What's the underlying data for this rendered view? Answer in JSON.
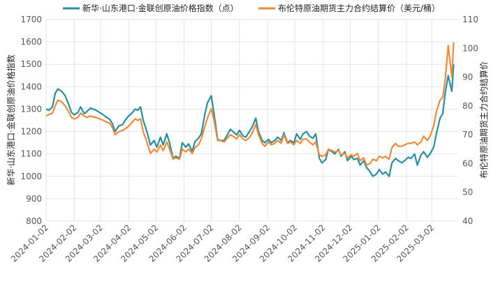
{
  "chart_data": {
    "type": "line",
    "legend_position": "top-center",
    "grid": true,
    "x_ticks": [
      "2024-01-02",
      "2024-02-02",
      "2024-03-02",
      "2024-04-02",
      "2024-05-02",
      "2024-06-02",
      "2024-07-02",
      "2024-08-02",
      "2024-09-02",
      "2024-10-02",
      "2024-11-02",
      "2024-12-02",
      "2025-01-02",
      "2025-02-02",
      "2025-03-02"
    ],
    "y_left": {
      "label": "新华·山东港口·金联创原油价格指数",
      "min": 800,
      "max": 1700,
      "ticks": [
        800,
        900,
        1000,
        1100,
        1200,
        1300,
        1400,
        1500,
        1600,
        1700
      ]
    },
    "y_right": {
      "label": "布伦特原油期货主力合约结算价",
      "min": 40,
      "max": 110,
      "ticks": [
        40,
        50,
        60,
        70,
        80,
        90,
        100,
        110
      ]
    },
    "series": [
      {
        "name": "新华·山东港口·金联创原油价格指数（点）",
        "axis": "left",
        "color": "#2a8c9c",
        "points": [
          [
            "2024-01-02",
            1300
          ],
          [
            "2024-01-05",
            1295
          ],
          [
            "2024-01-09",
            1310
          ],
          [
            "2024-01-12",
            1370
          ],
          [
            "2024-01-15",
            1390
          ],
          [
            "2024-01-19",
            1380
          ],
          [
            "2024-01-23",
            1360
          ],
          [
            "2024-01-26",
            1330
          ],
          [
            "2024-01-30",
            1285
          ],
          [
            "2024-02-02",
            1275
          ],
          [
            "2024-02-06",
            1285
          ],
          [
            "2024-02-09",
            1310
          ],
          [
            "2024-02-13",
            1280
          ],
          [
            "2024-02-16",
            1290
          ],
          [
            "2024-02-20",
            1305
          ],
          [
            "2024-02-26",
            1295
          ],
          [
            "2024-03-01",
            1285
          ],
          [
            "2024-03-05",
            1275
          ],
          [
            "2024-03-08",
            1265
          ],
          [
            "2024-03-12",
            1255
          ],
          [
            "2024-03-15",
            1235
          ],
          [
            "2024-03-18",
            1200
          ],
          [
            "2024-03-22",
            1225
          ],
          [
            "2024-03-26",
            1230
          ],
          [
            "2024-03-29",
            1250
          ],
          [
            "2024-04-02",
            1270
          ],
          [
            "2024-04-05",
            1280
          ],
          [
            "2024-04-09",
            1300
          ],
          [
            "2024-04-12",
            1295
          ],
          [
            "2024-04-15",
            1310
          ],
          [
            "2024-04-18",
            1250
          ],
          [
            "2024-04-22",
            1200
          ],
          [
            "2024-04-26",
            1140
          ],
          [
            "2024-04-30",
            1160
          ],
          [
            "2024-05-03",
            1130
          ],
          [
            "2024-05-07",
            1175
          ],
          [
            "2024-05-10",
            1140
          ],
          [
            "2024-05-14",
            1190
          ],
          [
            "2024-05-17",
            1150
          ],
          [
            "2024-05-21",
            1080
          ],
          [
            "2024-05-24",
            1090
          ],
          [
            "2024-05-28",
            1080
          ],
          [
            "2024-05-31",
            1150
          ],
          [
            "2024-06-04",
            1130
          ],
          [
            "2024-06-07",
            1145
          ],
          [
            "2024-06-11",
            1110
          ],
          [
            "2024-06-14",
            1155
          ],
          [
            "2024-06-18",
            1170
          ],
          [
            "2024-06-21",
            1190
          ],
          [
            "2024-06-25",
            1280
          ],
          [
            "2024-06-28",
            1330
          ],
          [
            "2024-07-02",
            1360
          ],
          [
            "2024-07-05",
            1280
          ],
          [
            "2024-07-09",
            1165
          ],
          [
            "2024-07-12",
            1160
          ],
          [
            "2024-07-16",
            1160
          ],
          [
            "2024-07-19",
            1180
          ],
          [
            "2024-07-23",
            1210
          ],
          [
            "2024-07-26",
            1200
          ],
          [
            "2024-07-30",
            1185
          ],
          [
            "2024-08-02",
            1205
          ],
          [
            "2024-08-06",
            1180
          ],
          [
            "2024-08-09",
            1175
          ],
          [
            "2024-08-13",
            1200
          ],
          [
            "2024-08-16",
            1220
          ],
          [
            "2024-08-20",
            1260
          ],
          [
            "2024-08-23",
            1200
          ],
          [
            "2024-08-27",
            1160
          ],
          [
            "2024-08-30",
            1150
          ],
          [
            "2024-09-03",
            1165
          ],
          [
            "2024-09-06",
            1150
          ],
          [
            "2024-09-10",
            1160
          ],
          [
            "2024-09-13",
            1175
          ],
          [
            "2024-09-17",
            1160
          ],
          [
            "2024-09-20",
            1195
          ],
          [
            "2024-09-24",
            1150
          ],
          [
            "2024-09-27",
            1160
          ],
          [
            "2024-10-01",
            1150
          ],
          [
            "2024-10-04",
            1190
          ],
          [
            "2024-10-08",
            1165
          ],
          [
            "2024-10-11",
            1190
          ],
          [
            "2024-10-15",
            1200
          ],
          [
            "2024-10-18",
            1180
          ],
          [
            "2024-10-22",
            1170
          ],
          [
            "2024-10-25",
            1190
          ],
          [
            "2024-10-29",
            1080
          ],
          [
            "2024-11-01",
            1060
          ],
          [
            "2024-11-05",
            1075
          ],
          [
            "2024-11-08",
            1120
          ],
          [
            "2024-11-12",
            1110
          ],
          [
            "2024-11-15",
            1100
          ],
          [
            "2024-11-19",
            1120
          ],
          [
            "2024-11-22",
            1090
          ],
          [
            "2024-11-26",
            1110
          ],
          [
            "2024-11-29",
            1070
          ],
          [
            "2024-12-03",
            1090
          ],
          [
            "2024-12-06",
            1075
          ],
          [
            "2024-12-10",
            1080
          ],
          [
            "2024-12-13",
            1050
          ],
          [
            "2024-12-17",
            1070
          ],
          [
            "2024-12-20",
            1040
          ],
          [
            "2024-12-24",
            1020
          ],
          [
            "2024-12-27",
            1000
          ],
          [
            "2024-12-31",
            1010
          ],
          [
            "2025-01-03",
            1030
          ],
          [
            "2025-01-07",
            1010
          ],
          [
            "2025-01-10",
            1020
          ],
          [
            "2025-01-14",
            1000
          ],
          [
            "2025-01-17",
            1060
          ],
          [
            "2025-01-21",
            1080
          ],
          [
            "2025-01-24",
            1070
          ],
          [
            "2025-01-28",
            1060
          ],
          [
            "2025-01-31",
            1070
          ],
          [
            "2025-02-04",
            1085
          ],
          [
            "2025-02-07",
            1080
          ],
          [
            "2025-02-11",
            1100
          ],
          [
            "2025-02-14",
            1050
          ],
          [
            "2025-02-18",
            1095
          ],
          [
            "2025-02-21",
            1110
          ],
          [
            "2025-02-25",
            1085
          ],
          [
            "2025-02-28",
            1100
          ],
          [
            "2025-03-04",
            1130
          ],
          [
            "2025-03-07",
            1190
          ],
          [
            "2025-03-11",
            1260
          ],
          [
            "2025-03-14",
            1280
          ],
          [
            "2025-03-17",
            1380
          ],
          [
            "2025-03-20",
            1450
          ],
          [
            "2025-03-24",
            1380
          ],
          [
            "2025-03-26",
            1500
          ]
        ]
      },
      {
        "name": "布伦特原油期货主力合约结算价（美元/桶）",
        "axis": "right",
        "color": "#ee8a3c",
        "points": [
          [
            "2024-01-02",
            76.5
          ],
          [
            "2024-01-05",
            77.0
          ],
          [
            "2024-01-09",
            77.5
          ],
          [
            "2024-01-12",
            80.0
          ],
          [
            "2024-01-15",
            82.0
          ],
          [
            "2024-01-19",
            81.5
          ],
          [
            "2024-01-23",
            80.0
          ],
          [
            "2024-01-26",
            78.5
          ],
          [
            "2024-01-30",
            76.0
          ],
          [
            "2024-02-02",
            75.5
          ],
          [
            "2024-02-06",
            76.0
          ],
          [
            "2024-02-09",
            77.5
          ],
          [
            "2024-02-13",
            76.5
          ],
          [
            "2024-02-16",
            76.0
          ],
          [
            "2024-02-20",
            76.5
          ],
          [
            "2024-02-26",
            76.0
          ],
          [
            "2024-03-01",
            75.5
          ],
          [
            "2024-03-05",
            75.0
          ],
          [
            "2024-03-08",
            74.5
          ],
          [
            "2024-03-12",
            74.0
          ],
          [
            "2024-03-15",
            72.5
          ],
          [
            "2024-03-18",
            70.0
          ],
          [
            "2024-03-22",
            71.0
          ],
          [
            "2024-03-26",
            71.5
          ],
          [
            "2024-03-29",
            72.0
          ],
          [
            "2024-04-02",
            73.0
          ],
          [
            "2024-04-05",
            74.0
          ],
          [
            "2024-04-09",
            75.5
          ],
          [
            "2024-04-12",
            75.0
          ],
          [
            "2024-04-15",
            75.5
          ],
          [
            "2024-04-18",
            71.0
          ],
          [
            "2024-04-22",
            67.5
          ],
          [
            "2024-04-26",
            63.5
          ],
          [
            "2024-04-30",
            65.0
          ],
          [
            "2024-05-03",
            64.0
          ],
          [
            "2024-05-07",
            66.5
          ],
          [
            "2024-05-10",
            64.5
          ],
          [
            "2024-05-14",
            67.5
          ],
          [
            "2024-05-17",
            65.0
          ],
          [
            "2024-05-21",
            61.5
          ],
          [
            "2024-05-24",
            62.0
          ],
          [
            "2024-05-28",
            61.5
          ],
          [
            "2024-05-31",
            65.0
          ],
          [
            "2024-06-04",
            64.0
          ],
          [
            "2024-06-07",
            65.0
          ],
          [
            "2024-06-11",
            63.5
          ],
          [
            "2024-06-14",
            65.5
          ],
          [
            "2024-06-18",
            66.5
          ],
          [
            "2024-06-21",
            68.5
          ],
          [
            "2024-06-25",
            73.0
          ],
          [
            "2024-06-28",
            76.0
          ],
          [
            "2024-07-02",
            79.0
          ],
          [
            "2024-07-05",
            75.0
          ],
          [
            "2024-07-09",
            68.0
          ],
          [
            "2024-07-12",
            68.0
          ],
          [
            "2024-07-16",
            67.5
          ],
          [
            "2024-07-19",
            68.5
          ],
          [
            "2024-07-23",
            70.0
          ],
          [
            "2024-07-26",
            69.5
          ],
          [
            "2024-07-30",
            68.5
          ],
          [
            "2024-08-02",
            70.0
          ],
          [
            "2024-08-06",
            68.5
          ],
          [
            "2024-08-09",
            68.0
          ],
          [
            "2024-08-13",
            69.0
          ],
          [
            "2024-08-16",
            70.5
          ],
          [
            "2024-08-20",
            73.5
          ],
          [
            "2024-08-23",
            70.0
          ],
          [
            "2024-08-27",
            67.0
          ],
          [
            "2024-08-30",
            66.0
          ],
          [
            "2024-09-03",
            67.5
          ],
          [
            "2024-09-06",
            66.5
          ],
          [
            "2024-09-10",
            67.0
          ],
          [
            "2024-09-13",
            68.0
          ],
          [
            "2024-09-17",
            67.0
          ],
          [
            "2024-09-20",
            70.0
          ],
          [
            "2024-09-24",
            67.0
          ],
          [
            "2024-09-27",
            67.5
          ],
          [
            "2024-10-01",
            66.5
          ],
          [
            "2024-10-04",
            68.0
          ],
          [
            "2024-10-08",
            67.0
          ],
          [
            "2024-10-11",
            68.5
          ],
          [
            "2024-10-15",
            68.5
          ],
          [
            "2024-10-18",
            67.5
          ],
          [
            "2024-10-22",
            66.5
          ],
          [
            "2024-10-25",
            67.5
          ],
          [
            "2024-10-29",
            63.0
          ],
          [
            "2024-11-01",
            62.5
          ],
          [
            "2024-11-05",
            63.0
          ],
          [
            "2024-11-08",
            65.0
          ],
          [
            "2024-11-12",
            64.5
          ],
          [
            "2024-11-15",
            64.0
          ],
          [
            "2024-11-19",
            64.5
          ],
          [
            "2024-11-22",
            63.0
          ],
          [
            "2024-11-26",
            63.5
          ],
          [
            "2024-11-29",
            62.0
          ],
          [
            "2024-12-03",
            63.0
          ],
          [
            "2024-12-06",
            62.5
          ],
          [
            "2024-12-10",
            63.5
          ],
          [
            "2024-12-13",
            61.0
          ],
          [
            "2024-12-17",
            62.0
          ],
          [
            "2024-12-20",
            59.5
          ],
          [
            "2024-12-24",
            60.0
          ],
          [
            "2024-12-27",
            61.5
          ],
          [
            "2024-12-31",
            61.0
          ],
          [
            "2025-01-03",
            62.5
          ],
          [
            "2025-01-07",
            62.0
          ],
          [
            "2025-01-10",
            62.5
          ],
          [
            "2025-01-14",
            61.5
          ],
          [
            "2025-01-17",
            65.5
          ],
          [
            "2025-01-21",
            67.0
          ],
          [
            "2025-01-24",
            66.0
          ],
          [
            "2025-01-28",
            66.0
          ],
          [
            "2025-01-31",
            66.5
          ],
          [
            "2025-02-04",
            67.0
          ],
          [
            "2025-02-07",
            67.0
          ],
          [
            "2025-02-11",
            67.5
          ],
          [
            "2025-02-14",
            66.5
          ],
          [
            "2025-02-18",
            67.5
          ],
          [
            "2025-02-21",
            69.5
          ],
          [
            "2025-02-25",
            68.0
          ],
          [
            "2025-02-28",
            69.5
          ],
          [
            "2025-03-04",
            73.0
          ],
          [
            "2025-03-07",
            78.0
          ],
          [
            "2025-03-11",
            82.0
          ],
          [
            "2025-03-14",
            83.0
          ],
          [
            "2025-03-17",
            90.0
          ],
          [
            "2025-03-20",
            101.0
          ],
          [
            "2025-03-24",
            90.0
          ],
          [
            "2025-03-26",
            102.0
          ]
        ]
      }
    ]
  }
}
